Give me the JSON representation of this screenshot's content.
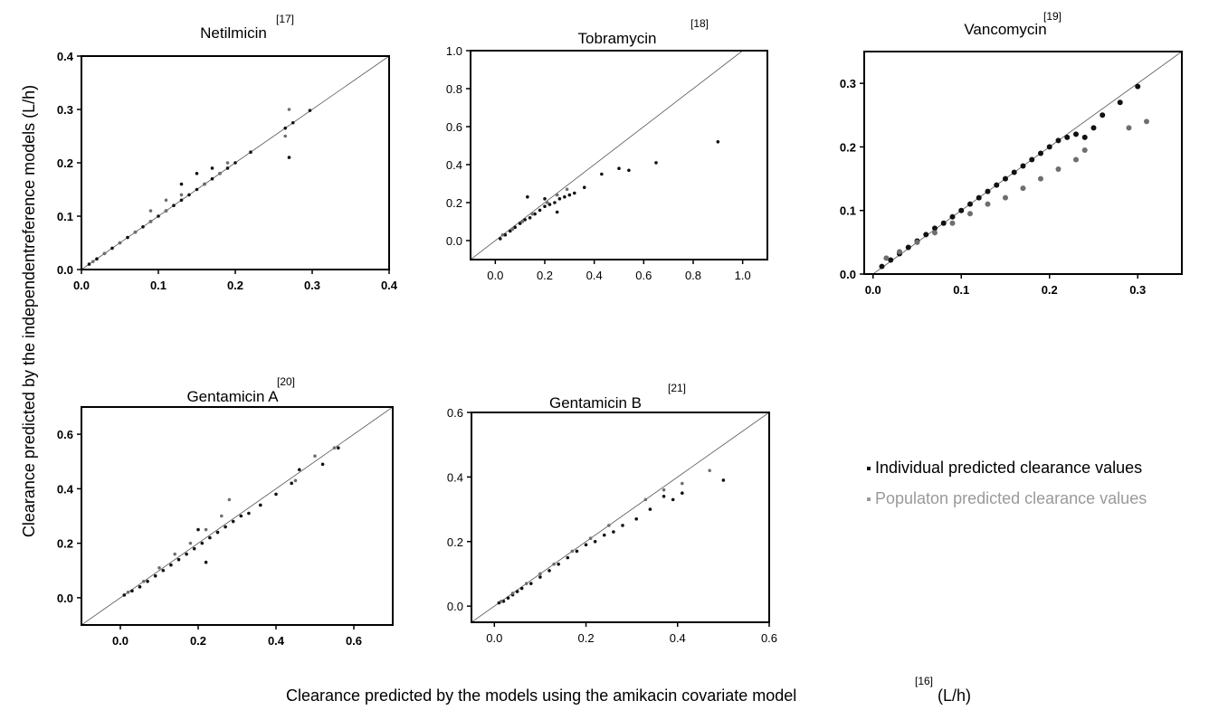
{
  "figure": {
    "ylabel": "Clearance predicted by the independentreference models (L/h)",
    "xlabel_main": "Clearance predicted by the models using the amikacin covariate model",
    "xlabel_ref": "[16]",
    "xlabel_unit": "(L/h)"
  },
  "legend": {
    "individual": "Individual predicted clearance values",
    "population": "Populaton predicted clearance values"
  },
  "colors": {
    "individual": "#111111",
    "population": "#6e6e6e",
    "legend_population_text": "#9a9a9a",
    "identity_line": "#555555"
  },
  "chart_data": [
    {
      "type": "scatter",
      "title": "Netilmicin",
      "ref": "[17]",
      "xlim": [
        0.0,
        0.4
      ],
      "ylim": [
        0.0,
        0.4
      ],
      "xticks": [
        "0.0",
        "0.1",
        "0.2",
        "0.3",
        "0.4"
      ],
      "yticks": [
        "0.0",
        "0.1",
        "0.2",
        "0.3",
        "0.4"
      ],
      "bold_ticks": true,
      "identity_line": true,
      "series": [
        {
          "role": "individual",
          "points": [
            [
              0.01,
              0.01
            ],
            [
              0.02,
              0.02
            ],
            [
              0.03,
              0.03
            ],
            [
              0.04,
              0.04
            ],
            [
              0.05,
              0.05
            ],
            [
              0.06,
              0.06
            ],
            [
              0.07,
              0.07
            ],
            [
              0.08,
              0.08
            ],
            [
              0.09,
              0.09
            ],
            [
              0.1,
              0.1
            ],
            [
              0.11,
              0.11
            ],
            [
              0.12,
              0.12
            ],
            [
              0.13,
              0.13
            ],
            [
              0.14,
              0.14
            ],
            [
              0.15,
              0.15
            ],
            [
              0.16,
              0.16
            ],
            [
              0.17,
              0.17
            ],
            [
              0.18,
              0.18
            ],
            [
              0.19,
              0.19
            ],
            [
              0.2,
              0.2
            ],
            [
              0.22,
              0.22
            ],
            [
              0.265,
              0.265
            ],
            [
              0.275,
              0.275
            ],
            [
              0.297,
              0.298
            ],
            [
              0.27,
              0.21
            ],
            [
              0.13,
              0.16
            ],
            [
              0.15,
              0.18
            ],
            [
              0.17,
              0.19
            ]
          ]
        },
        {
          "role": "population",
          "points": [
            [
              0.015,
              0.015
            ],
            [
              0.03,
              0.03
            ],
            [
              0.05,
              0.05
            ],
            [
              0.07,
              0.07
            ],
            [
              0.09,
              0.09
            ],
            [
              0.11,
              0.11
            ],
            [
              0.13,
              0.14
            ],
            [
              0.16,
              0.16
            ],
            [
              0.18,
              0.18
            ],
            [
              0.19,
              0.2
            ],
            [
              0.265,
              0.25
            ],
            [
              0.27,
              0.3
            ],
            [
              0.09,
              0.11
            ],
            [
              0.11,
              0.13
            ]
          ]
        }
      ]
    },
    {
      "type": "scatter",
      "title": "Tobramycin",
      "ref": "[18]",
      "xlim": [
        -0.1,
        1.1
      ],
      "ylim": [
        -0.1,
        1.0
      ],
      "xticks": [
        "0.0",
        "0.2",
        "0.4",
        "0.6",
        "0.8",
        "1.0"
      ],
      "yticks": [
        "0.0",
        "0.2",
        "0.4",
        "0.6",
        "0.8",
        "1.0"
      ],
      "bold_ticks": false,
      "identity_line": true,
      "series": [
        {
          "role": "individual",
          "points": [
            [
              0.02,
              0.01
            ],
            [
              0.04,
              0.03
            ],
            [
              0.06,
              0.05
            ],
            [
              0.08,
              0.07
            ],
            [
              0.1,
              0.09
            ],
            [
              0.12,
              0.11
            ],
            [
              0.14,
              0.12
            ],
            [
              0.16,
              0.14
            ],
            [
              0.18,
              0.16
            ],
            [
              0.2,
              0.18
            ],
            [
              0.22,
              0.19
            ],
            [
              0.24,
              0.2
            ],
            [
              0.26,
              0.22
            ],
            [
              0.28,
              0.23
            ],
            [
              0.3,
              0.24
            ],
            [
              0.32,
              0.25
            ],
            [
              0.36,
              0.28
            ],
            [
              0.43,
              0.35
            ],
            [
              0.5,
              0.38
            ],
            [
              0.54,
              0.37
            ],
            [
              0.65,
              0.41
            ],
            [
              0.9,
              0.52
            ],
            [
              0.13,
              0.23
            ],
            [
              0.2,
              0.22
            ],
            [
              0.25,
              0.15
            ]
          ]
        },
        {
          "role": "population",
          "points": [
            [
              0.03,
              0.03
            ],
            [
              0.07,
              0.06
            ],
            [
              0.11,
              0.1
            ],
            [
              0.15,
              0.14
            ],
            [
              0.21,
              0.2
            ],
            [
              0.25,
              0.24
            ],
            [
              0.29,
              0.27
            ]
          ]
        }
      ]
    },
    {
      "type": "scatter",
      "title": "Vancomycin",
      "ref": "[19]",
      "xlim": [
        -0.01,
        0.35
      ],
      "ylim": [
        0.0,
        0.35
      ],
      "xticks": [
        "0.0",
        "0.1",
        "0.2",
        "0.3"
      ],
      "yticks": [
        "0.0",
        "0.1",
        "0.2",
        "0.3"
      ],
      "bold_ticks": true,
      "identity_line": true,
      "series": [
        {
          "role": "individual",
          "points": [
            [
              0.01,
              0.012
            ],
            [
              0.02,
              0.022
            ],
            [
              0.03,
              0.032
            ],
            [
              0.04,
              0.042
            ],
            [
              0.05,
              0.052
            ],
            [
              0.06,
              0.062
            ],
            [
              0.07,
              0.072
            ],
            [
              0.08,
              0.08
            ],
            [
              0.09,
              0.09
            ],
            [
              0.1,
              0.1
            ],
            [
              0.11,
              0.11
            ],
            [
              0.12,
              0.12
            ],
            [
              0.13,
              0.13
            ],
            [
              0.14,
              0.14
            ],
            [
              0.15,
              0.15
            ],
            [
              0.16,
              0.16
            ],
            [
              0.17,
              0.17
            ],
            [
              0.18,
              0.18
            ],
            [
              0.19,
              0.19
            ],
            [
              0.2,
              0.2
            ],
            [
              0.21,
              0.21
            ],
            [
              0.22,
              0.215
            ],
            [
              0.23,
              0.22
            ],
            [
              0.25,
              0.23
            ],
            [
              0.26,
              0.25
            ],
            [
              0.28,
              0.27
            ],
            [
              0.3,
              0.295
            ],
            [
              0.24,
              0.215
            ]
          ]
        },
        {
          "role": "population",
          "points": [
            [
              0.015,
              0.025
            ],
            [
              0.03,
              0.035
            ],
            [
              0.05,
              0.05
            ],
            [
              0.07,
              0.065
            ],
            [
              0.09,
              0.08
            ],
            [
              0.11,
              0.095
            ],
            [
              0.13,
              0.11
            ],
            [
              0.15,
              0.12
            ],
            [
              0.17,
              0.135
            ],
            [
              0.19,
              0.15
            ],
            [
              0.21,
              0.165
            ],
            [
              0.23,
              0.18
            ],
            [
              0.24,
              0.195
            ],
            [
              0.29,
              0.23
            ],
            [
              0.31,
              0.24
            ]
          ]
        }
      ]
    },
    {
      "type": "scatter",
      "title": "Gentamicin A",
      "ref": "[20]",
      "xlim": [
        -0.1,
        0.7
      ],
      "ylim": [
        -0.1,
        0.7
      ],
      "xticks": [
        "0.0",
        "0.2",
        "0.4",
        "0.6"
      ],
      "yticks": [
        "0.0",
        "0.2",
        "0.4",
        "0.6"
      ],
      "bold_ticks": true,
      "identity_line": true,
      "series": [
        {
          "role": "individual",
          "points": [
            [
              0.01,
              0.01
            ],
            [
              0.03,
              0.025
            ],
            [
              0.05,
              0.04
            ],
            [
              0.07,
              0.06
            ],
            [
              0.09,
              0.08
            ],
            [
              0.11,
              0.1
            ],
            [
              0.13,
              0.12
            ],
            [
              0.15,
              0.14
            ],
            [
              0.17,
              0.16
            ],
            [
              0.19,
              0.18
            ],
            [
              0.21,
              0.2
            ],
            [
              0.23,
              0.22
            ],
            [
              0.25,
              0.24
            ],
            [
              0.27,
              0.26
            ],
            [
              0.29,
              0.28
            ],
            [
              0.31,
              0.3
            ],
            [
              0.33,
              0.31
            ],
            [
              0.36,
              0.34
            ],
            [
              0.4,
              0.38
            ],
            [
              0.44,
              0.42
            ],
            [
              0.46,
              0.47
            ],
            [
              0.52,
              0.49
            ],
            [
              0.56,
              0.55
            ],
            [
              0.2,
              0.25
            ],
            [
              0.22,
              0.13
            ]
          ]
        },
        {
          "role": "population",
          "points": [
            [
              0.02,
              0.02
            ],
            [
              0.06,
              0.06
            ],
            [
              0.1,
              0.11
            ],
            [
              0.14,
              0.16
            ],
            [
              0.18,
              0.2
            ],
            [
              0.22,
              0.25
            ],
            [
              0.26,
              0.3
            ],
            [
              0.28,
              0.36
            ],
            [
              0.5,
              0.52
            ],
            [
              0.55,
              0.55
            ],
            [
              0.45,
              0.43
            ]
          ]
        }
      ]
    },
    {
      "type": "scatter",
      "title": "Gentamicin B",
      "ref": "[21]",
      "xlim": [
        -0.05,
        0.6
      ],
      "ylim": [
        -0.05,
        0.6
      ],
      "xticks": [
        "0.0",
        "0.2",
        "0.4",
        "0.6"
      ],
      "yticks": [
        "0.0",
        "0.2",
        "0.4",
        "0.6"
      ],
      "bold_ticks": false,
      "identity_line": true,
      "series": [
        {
          "role": "individual",
          "points": [
            [
              0.01,
              0.01
            ],
            [
              0.02,
              0.015
            ],
            [
              0.03,
              0.025
            ],
            [
              0.04,
              0.035
            ],
            [
              0.05,
              0.045
            ],
            [
              0.06,
              0.055
            ],
            [
              0.08,
              0.07
            ],
            [
              0.1,
              0.09
            ],
            [
              0.12,
              0.11
            ],
            [
              0.14,
              0.13
            ],
            [
              0.16,
              0.15
            ],
            [
              0.18,
              0.17
            ],
            [
              0.2,
              0.19
            ],
            [
              0.22,
              0.2
            ],
            [
              0.24,
              0.22
            ],
            [
              0.26,
              0.23
            ],
            [
              0.28,
              0.25
            ],
            [
              0.31,
              0.27
            ],
            [
              0.34,
              0.3
            ],
            [
              0.37,
              0.34
            ],
            [
              0.39,
              0.33
            ],
            [
              0.41,
              0.35
            ],
            [
              0.5,
              0.39
            ]
          ]
        },
        {
          "role": "population",
          "points": [
            [
              0.015,
              0.015
            ],
            [
              0.04,
              0.04
            ],
            [
              0.07,
              0.07
            ],
            [
              0.1,
              0.1
            ],
            [
              0.13,
              0.13
            ],
            [
              0.17,
              0.17
            ],
            [
              0.21,
              0.21
            ],
            [
              0.25,
              0.25
            ],
            [
              0.33,
              0.33
            ],
            [
              0.37,
              0.36
            ],
            [
              0.41,
              0.38
            ],
            [
              0.47,
              0.42
            ]
          ]
        }
      ]
    }
  ]
}
